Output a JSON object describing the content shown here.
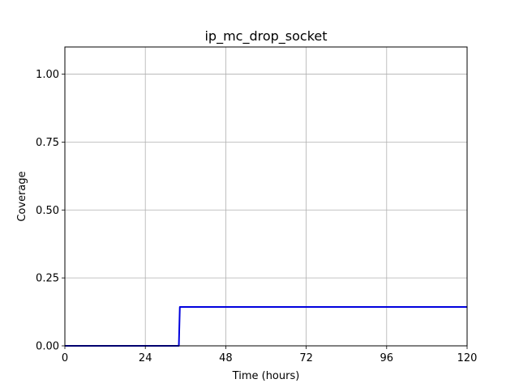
{
  "chart_data": {
    "type": "line",
    "title": "ip_mc_drop_socket",
    "xlabel": "Time (hours)",
    "ylabel": "Coverage",
    "xlim": [
      0,
      120
    ],
    "ylim": [
      0,
      1.1
    ],
    "xticks": [
      0,
      24,
      48,
      72,
      96,
      120
    ],
    "xtick_labels": [
      "0",
      "24",
      "48",
      "72",
      "96",
      "120"
    ],
    "yticks": [
      0,
      0.25,
      0.5,
      0.75,
      1.0
    ],
    "ytick_labels": [
      "0.00",
      "0.25",
      "0.50",
      "0.75",
      "1.00"
    ],
    "grid": true,
    "series": [
      {
        "color": "#0000dd",
        "x": [
          0,
          34,
          34.3,
          120
        ],
        "y": [
          0,
          0,
          0.143,
          0.143
        ]
      }
    ]
  }
}
